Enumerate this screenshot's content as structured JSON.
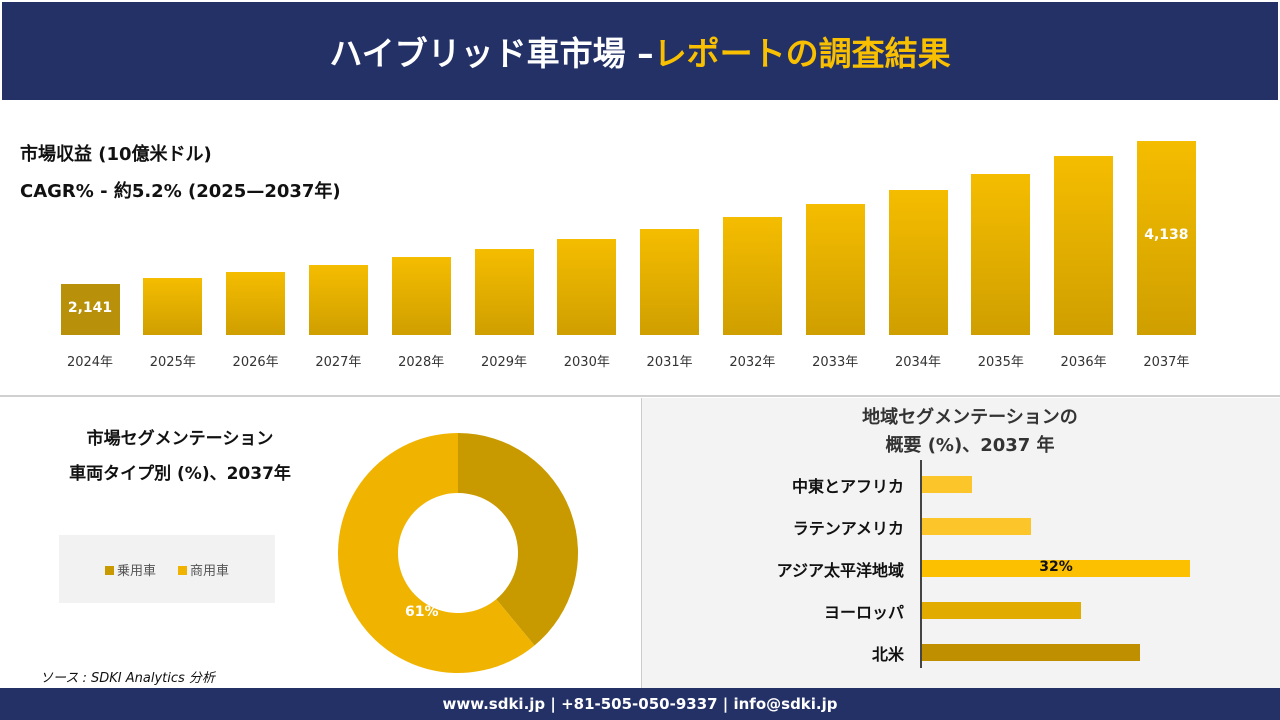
{
  "header": {
    "title_main": "ハイブリッド車市場 –",
    "title_accent": "レポートの調査結果"
  },
  "revenue": {
    "title": "市場収益 (10億米ドル)",
    "cagr": "CAGR% - 約5.2% (2025—2037年)"
  },
  "chart_data": [
    {
      "type": "bar",
      "title": "市場収益 (10億米ドル)",
      "categories": [
        "2024年",
        "2025年",
        "2026年",
        "2027年",
        "2028年",
        "2029年",
        "2030年",
        "2031年",
        "2032年",
        "2033年",
        "2034年",
        "2035年",
        "2036年",
        "2037年"
      ],
      "values": [
        2141,
        2225,
        2309,
        2406,
        2518,
        2630,
        2770,
        2909,
        3077,
        3258,
        3454,
        3677,
        3928,
        4138
      ],
      "data_labels": {
        "0": "2,141",
        "13": "4,138"
      },
      "ylim": [
        1430,
        4138
      ]
    },
    {
      "type": "pie",
      "title": "市場セグメンテーション 車両タイプ別 (%)、2037年",
      "categories": [
        "乗用車",
        "商用車"
      ],
      "values": [
        39,
        61
      ],
      "data_labels": {
        "1": "61%"
      },
      "colors": [
        "#c99a00",
        "#f0b400"
      ],
      "legend": "left"
    },
    {
      "type": "bar",
      "orientation": "horizontal",
      "title": "地域セグメンテーションの 概要 (%)、2037 年",
      "categories": [
        "中東とアフリカ",
        "ラテンアメリカ",
        "アジア太平洋地域",
        "ヨーロッパ",
        "北米"
      ],
      "values": [
        6,
        13,
        32,
        19,
        26
      ],
      "data_labels": {
        "2": "32%"
      },
      "colors": [
        "#fcc62a",
        "#fcc62a",
        "#fcc000",
        "#e2ab00",
        "#c08f00"
      ]
    }
  ],
  "segment": {
    "title1": "市場セグメンテーション",
    "title2": "車両タイプ別 (%)、2037年"
  },
  "region": {
    "title1": "地域セグメンテーションの",
    "title2": "概要 (%)、2037 年"
  },
  "source": "ソース : SDKI Analytics 分析",
  "footer": "www.sdki.jp | +81-505-050-9337 | info@sdki.jp"
}
